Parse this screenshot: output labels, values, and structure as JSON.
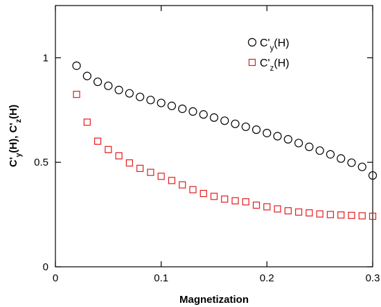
{
  "chart_data": {
    "type": "scatter",
    "xlabel": "Magnetization",
    "ylabel": {
      "parts": [
        {
          "text": "C'",
          "sub": false
        },
        {
          "text": "y",
          "sub": true
        },
        {
          "text": "(H), C'",
          "sub": false
        },
        {
          "text": "z",
          "sub": true
        },
        {
          "text": "(H)",
          "sub": false
        }
      ]
    },
    "xlim": [
      0,
      0.3
    ],
    "ylim": [
      0,
      1.25
    ],
    "x_ticks": [
      0,
      0.1,
      0.2,
      0.3
    ],
    "x_tick_labels": [
      "0",
      "0.1",
      "0.2",
      "0.3"
    ],
    "y_ticks": [
      0,
      0.5,
      1
    ],
    "y_tick_labels": [
      "0",
      "0.5",
      "1"
    ],
    "grid": false,
    "legend_position": "top-right",
    "series": [
      {
        "name": "C'y(H)",
        "legend_parts": [
          {
            "text": "C'",
            "sub": false
          },
          {
            "text": "y",
            "sub": true
          },
          {
            "text": "(H)",
            "sub": false
          }
        ],
        "marker": "circle",
        "color": "#000000",
        "x": [
          0.02,
          0.03,
          0.04,
          0.05,
          0.06,
          0.07,
          0.08,
          0.09,
          0.1,
          0.11,
          0.12,
          0.13,
          0.14,
          0.15,
          0.16,
          0.17,
          0.18,
          0.19,
          0.2,
          0.21,
          0.22,
          0.23,
          0.24,
          0.25,
          0.26,
          0.27,
          0.28,
          0.29,
          0.3
        ],
        "y": [
          0.962,
          0.913,
          0.885,
          0.866,
          0.846,
          0.83,
          0.813,
          0.798,
          0.784,
          0.77,
          0.756,
          0.743,
          0.729,
          0.714,
          0.699,
          0.684,
          0.67,
          0.656,
          0.64,
          0.625,
          0.61,
          0.592,
          0.574,
          0.556,
          0.538,
          0.518,
          0.498,
          0.478,
          0.437
        ]
      },
      {
        "name": "C'z(H)",
        "legend_parts": [
          {
            "text": "C'",
            "sub": false
          },
          {
            "text": "z",
            "sub": true
          },
          {
            "text": "(H)",
            "sub": false
          }
        ],
        "marker": "square",
        "color": "#e41a1c",
        "x": [
          0.02,
          0.03,
          0.04,
          0.05,
          0.06,
          0.07,
          0.08,
          0.09,
          0.1,
          0.11,
          0.12,
          0.13,
          0.14,
          0.15,
          0.16,
          0.17,
          0.18,
          0.19,
          0.2,
          0.21,
          0.22,
          0.23,
          0.24,
          0.25,
          0.26,
          0.27,
          0.28,
          0.29,
          0.3
        ],
        "y": [
          0.825,
          0.692,
          0.601,
          0.561,
          0.531,
          0.497,
          0.471,
          0.452,
          0.433,
          0.413,
          0.392,
          0.369,
          0.351,
          0.337,
          0.324,
          0.316,
          0.311,
          0.295,
          0.287,
          0.277,
          0.268,
          0.262,
          0.258,
          0.253,
          0.25,
          0.248,
          0.246,
          0.244,
          0.242
        ]
      }
    ]
  }
}
